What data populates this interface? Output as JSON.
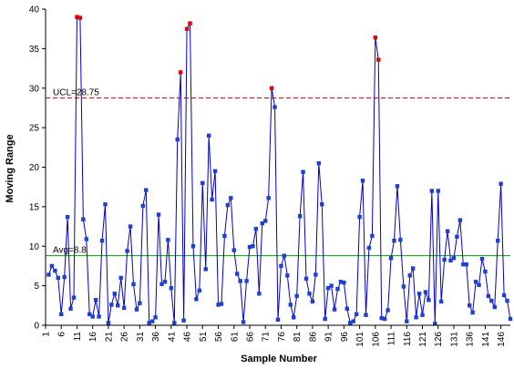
{
  "chart_data": {
    "type": "line",
    "title": "",
    "xlabel": "Sample Number",
    "ylabel": "Moving Range",
    "ylim": [
      0,
      40
    ],
    "yticks": [
      0,
      5,
      10,
      15,
      20,
      25,
      30,
      35,
      40
    ],
    "x_tick_labels": [
      "1",
      "6",
      "11",
      "16",
      "21",
      "26",
      "31",
      "36",
      "41",
      "46",
      "51",
      "56",
      "61",
      "66",
      "71",
      "76",
      "81",
      "86",
      "91",
      "96",
      "101",
      "106",
      "111",
      "116",
      "121",
      "126",
      "131",
      "136",
      "141",
      "146"
    ],
    "x_range": [
      1,
      149
    ],
    "grid": false,
    "legend": "none",
    "reference_lines": [
      {
        "label": "UCL=28.75",
        "value": 28.75,
        "color": "#c00000",
        "style": "dashed"
      },
      {
        "label": "Avg=8.8",
        "value": 8.8,
        "color": "#00a000",
        "style": "solid"
      }
    ],
    "series": [
      {
        "color": "#0000cc",
        "point_color": "#1f3fd0",
        "out_of_control_color": "#e00000",
        "x": [
          2,
          3,
          4,
          5,
          6,
          7,
          8,
          9,
          10,
          11,
          12,
          13,
          14,
          15,
          16,
          17,
          18,
          19,
          20,
          21,
          22,
          23,
          24,
          25,
          26,
          27,
          28,
          29,
          30,
          31,
          32,
          33,
          34,
          35,
          36,
          37,
          38,
          39,
          40,
          41,
          42,
          43,
          44,
          45,
          46,
          47,
          48,
          49,
          50,
          51,
          52,
          53,
          54,
          55,
          56,
          57,
          58,
          59,
          60,
          61,
          62,
          63,
          64,
          65,
          66,
          67,
          68,
          69,
          70,
          71,
          72,
          73,
          74,
          75,
          76,
          77,
          78,
          79,
          80,
          81,
          82,
          83,
          84,
          85,
          86,
          87,
          88,
          89,
          90,
          91,
          92,
          93,
          94,
          95,
          96,
          97,
          98,
          99,
          100,
          101,
          102,
          103,
          104,
          105,
          106,
          107,
          108,
          109,
          110,
          111,
          112,
          113,
          114,
          115,
          116,
          117,
          118,
          119,
          120,
          121,
          122,
          123,
          124,
          125,
          126,
          127,
          128,
          129,
          130,
          131,
          132,
          133,
          134,
          135,
          136,
          137,
          138,
          139,
          140,
          141,
          142,
          143,
          144,
          145,
          146,
          147,
          148,
          149
        ],
        "y": [
          6.4,
          7.5,
          6.9,
          6.0,
          1.4,
          6.1,
          13.7,
          2.1,
          3.5,
          39.0,
          38.9,
          13.4,
          10.9,
          1.4,
          1.1,
          3.2,
          1.1,
          10.7,
          15.3,
          0.3,
          2.6,
          4.0,
          2.5,
          6.0,
          2.2,
          9.4,
          12.5,
          5.2,
          2.0,
          2.8,
          15.1,
          17.1,
          0.3,
          0.5,
          1.0,
          14.0,
          5.2,
          5.5,
          10.8,
          4.7,
          0.3,
          23.5,
          32.0,
          0.6,
          37.5,
          38.2,
          10.0,
          3.3,
          4.4,
          18.0,
          7.1,
          24.0,
          15.9,
          19.5,
          2.6,
          2.7,
          11.3,
          15.2,
          16.1,
          9.5,
          6.5,
          5.6,
          0.4,
          5.6,
          9.9,
          10.0,
          12.2,
          4.0,
          12.9,
          13.2,
          16.1,
          30.0,
          27.6,
          0.7,
          7.5,
          8.8,
          6.3,
          2.6,
          1.0,
          3.7,
          13.8,
          19.4,
          5.9,
          4.0,
          3.0,
          6.4,
          20.5,
          15.3,
          0.8,
          4.7,
          5.0,
          2.0,
          4.6,
          5.5,
          5.4,
          2.1,
          0.3,
          0.5,
          1.4,
          13.7,
          18.3,
          1.3,
          9.8,
          11.3,
          36.4,
          33.6,
          0.9,
          0.8,
          1.9,
          8.5,
          10.7,
          17.6,
          10.8,
          4.9,
          0.5,
          6.3,
          7.2,
          1.0,
          4.0,
          1.3,
          4.2,
          3.2,
          17.0,
          0.2,
          17.0,
          3.0,
          8.3,
          11.9,
          8.2,
          8.5,
          11.2,
          13.3,
          7.7,
          7.7,
          2.5,
          1.6,
          5.5,
          5.1,
          8.4,
          6.8,
          3.7,
          3.1,
          2.3,
          10.7,
          17.9,
          3.8,
          3.1,
          0.8
        ]
      }
    ]
  }
}
